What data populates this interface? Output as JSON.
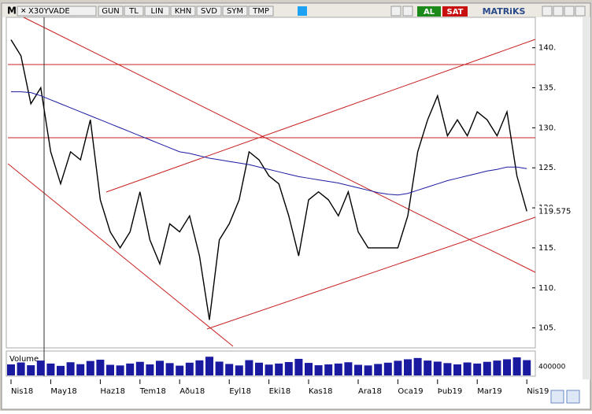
{
  "toolbar": {
    "menu": "M",
    "symbol": "X30YVADE",
    "buttons": [
      "GUN",
      "TL",
      "LIN",
      "KHN",
      "SVD",
      "SYM",
      "TMP"
    ],
    "buy": "AL",
    "sell": "SAT",
    "brand": "MATRiKS"
  },
  "chart_data": {
    "type": "line",
    "categories": [
      "Nis18",
      null,
      null,
      null,
      "May18",
      null,
      null,
      null,
      null,
      "Haz18",
      null,
      null,
      null,
      "Tem18",
      null,
      null,
      null,
      "Aðu18",
      null,
      null,
      null,
      null,
      "Eyl18",
      null,
      null,
      null,
      "Eki18",
      null,
      null,
      null,
      "Kas18",
      null,
      null,
      null,
      null,
      "Ara18",
      null,
      null,
      null,
      "Oca19",
      null,
      null,
      null,
      "Þub19",
      null,
      null,
      null,
      "Mar19",
      null,
      null,
      null,
      null,
      "Nis19"
    ],
    "series": [
      {
        "color": "#000000",
        "values": [
          141,
          139,
          133,
          135,
          127,
          123,
          127,
          126,
          131,
          121,
          117,
          115,
          117,
          122,
          116,
          113,
          118,
          117,
          119,
          114,
          106,
          116,
          118,
          121,
          127,
          126,
          124,
          123,
          119,
          114,
          121,
          122,
          121,
          119,
          122,
          117,
          115,
          115,
          115,
          115,
          119,
          127,
          131,
          134,
          129,
          131,
          129,
          132,
          131,
          129,
          132,
          124,
          119.575
        ]
      },
      {
        "color": "#1a1aa0",
        "values": [
          134.5,
          134.5,
          134.4,
          134,
          133.5,
          133,
          132.5,
          132,
          131.5,
          131,
          130.5,
          130,
          129.5,
          129,
          128.5,
          128,
          127.5,
          127,
          126.8,
          126.5,
          126.2,
          126,
          125.8,
          125.6,
          125.4,
          125.1,
          124.8,
          124.5,
          124.2,
          123.9,
          123.7,
          123.5,
          123.3,
          123.1,
          122.8,
          122.5,
          122.2,
          121.9,
          121.7,
          121.6,
          121.8,
          122.2,
          122.6,
          123,
          123.4,
          123.7,
          124,
          124.3,
          124.6,
          124.8,
          125.1,
          125.1,
          124.9
        ]
      }
    ],
    "last_price": 119.575,
    "ylim": [
      102.7,
      144
    ],
    "yticks": [
      {
        "value": 105,
        "label": "105."
      },
      {
        "value": 110,
        "label": "110."
      },
      {
        "value": 115,
        "label": "115."
      },
      {
        "value": 120,
        "label": "120."
      },
      {
        "value": 125,
        "label": "125."
      },
      {
        "value": 130,
        "label": "130."
      },
      {
        "value": 135,
        "label": "135."
      },
      {
        "value": 140,
        "label": "140."
      }
    ],
    "volume": {
      "name": "Volume",
      "color": "#1a1aa0",
      "ylim": [
        0,
        1000000
      ],
      "yticks": [
        400000
      ],
      "values": [
        520000,
        610000,
        480000,
        700000,
        560000,
        450000,
        620000,
        530000,
        680000,
        740000,
        500000,
        470000,
        560000,
        640000,
        520000,
        690000,
        580000,
        460000,
        600000,
        710000,
        880000,
        650000,
        540000,
        470000,
        720000,
        600000,
        510000,
        560000,
        630000,
        780000,
        590000,
        480000,
        520000,
        560000,
        620000,
        500000,
        470000,
        540000,
        600000,
        690000,
        760000,
        820000,
        700000,
        650000,
        580000,
        520000,
        610000,
        560000,
        640000,
        700000,
        760000,
        850000,
        720000
      ]
    }
  }
}
